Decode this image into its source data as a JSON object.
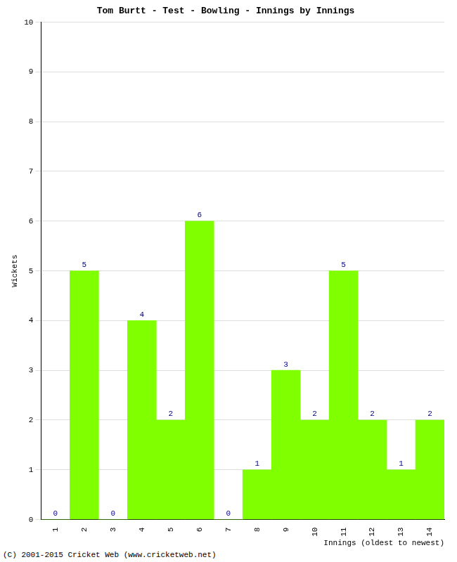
{
  "chart_data": {
    "type": "bar",
    "title": "Tom Burtt - Test - Bowling - Innings by Innings",
    "x_label": "Innings (oldest to newest)",
    "y_label": "Wickets",
    "categories": [
      "1",
      "2",
      "3",
      "4",
      "5",
      "6",
      "7",
      "8",
      "9",
      "10",
      "11",
      "12",
      "13",
      "14"
    ],
    "values": [
      0,
      5,
      0,
      4,
      2,
      6,
      0,
      1,
      3,
      2,
      5,
      2,
      1,
      2
    ],
    "color": "#80ff00",
    "ylim": [
      0,
      10
    ],
    "yticks": [
      0,
      1,
      2,
      3,
      4,
      5,
      6,
      7,
      8,
      9,
      10
    ],
    "grid": true,
    "data_labels": true,
    "annotations": [
      "(C) 2001-2015 Cricket Web (www.cricketweb.net)"
    ]
  }
}
